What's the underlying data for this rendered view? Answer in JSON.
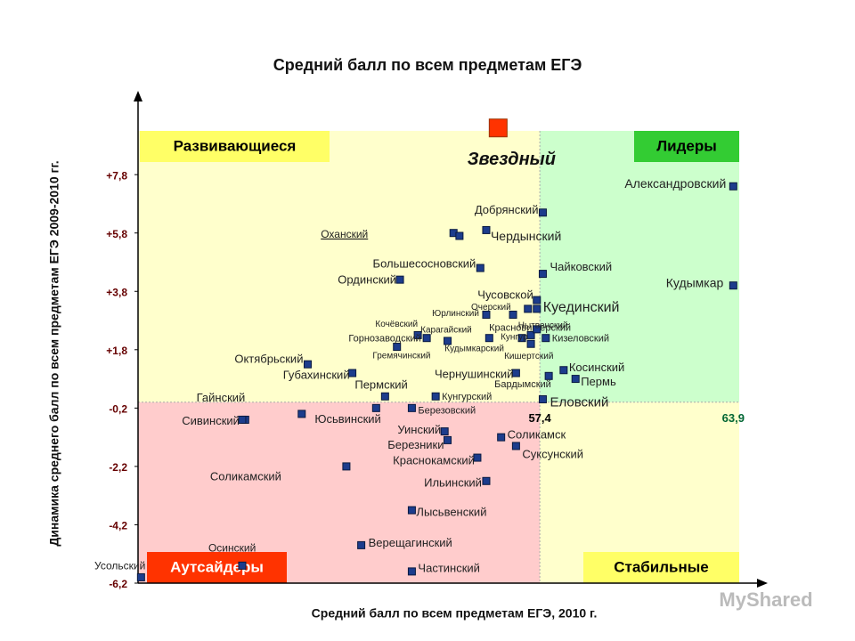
{
  "chart_data": {
    "type": "scatter",
    "title": "Средний балл по всем предметам ЕГЭ",
    "x_label": "Средний балл по всем предметам ЕГЭ, 2010 г.",
    "y_label": "Динамика среднего балл по всем предметам ЕГЭ 2009-2010 гг.",
    "xlim": [
      43.9,
      64.1
    ],
    "ylim": [
      -6.2,
      9.3
    ],
    "yticks": [
      {
        "value": 7.8,
        "label": "+7,8"
      },
      {
        "value": 5.8,
        "label": "+5,8"
      },
      {
        "value": 3.8,
        "label": "+3,8"
      },
      {
        "value": 1.8,
        "label": "+1,8"
      },
      {
        "value": -0.2,
        "label": "-0,2"
      },
      {
        "value": -2.2,
        "label": "-2,2"
      },
      {
        "value": -4.2,
        "label": "-4,2"
      },
      {
        "value": -6.2,
        "label": "-6,2"
      }
    ],
    "quadrant_split": {
      "x": 57.4,
      "y": 0
    },
    "quadrants": [
      {
        "label": "Развивающиеся",
        "color": "#ffffcc",
        "box_color": "#ffff66",
        "text_color": "#000000"
      },
      {
        "label": "Лидеры",
        "color": "#ccffcc",
        "box_color": "#33cc33",
        "text_color": "#000000"
      },
      {
        "label": "Аутсайдеры",
        "color": "#ffcccc",
        "box_color": "#ff3300",
        "text_color": "#ffffff"
      },
      {
        "label": "Стабильные",
        "color": "#ffffcc",
        "box_color": "#ffff66",
        "text_color": "#000000"
      }
    ],
    "annotations": [
      {
        "label": "57,4",
        "x": 57.4,
        "color": "#000000"
      },
      {
        "label": "63,9",
        "x": 63.9,
        "color": "#006633"
      }
    ],
    "color": "#1c3c8c",
    "highlight": {
      "name": "Звездный",
      "x": 56.0,
      "y": 9.4,
      "color": "#ff3300"
    },
    "points": [
      {
        "name": "Александровский",
        "x": 63.9,
        "y": 7.4
      },
      {
        "name": "Кудымкар",
        "x": 63.9,
        "y": 4.0
      },
      {
        "name": "Добрянский",
        "x": 57.5,
        "y": 6.5
      },
      {
        "name": "Чердынский",
        "x": 55.6,
        "y": 5.9
      },
      {
        "name": "Оханский",
        "x": 54.5,
        "y": 5.8
      },
      {
        "name": null,
        "x": 54.7,
        "y": 5.7
      },
      {
        "name": "Большесосновский",
        "x": 55.4,
        "y": 4.6
      },
      {
        "name": "Ординский",
        "x": 52.7,
        "y": 4.2
      },
      {
        "name": "Чайковский",
        "x": 57.5,
        "y": 4.4
      },
      {
        "name": "Чусовской",
        "x": 57.3,
        "y": 3.5
      },
      {
        "name": "Очерский",
        "x": 56.5,
        "y": 3.0
      },
      {
        "name": "Юрлинский",
        "x": 55.6,
        "y": 3.0
      },
      {
        "name": "Куединский",
        "x": 57.3,
        "y": 3.2
      },
      {
        "name": null,
        "x": 57.0,
        "y": 3.2
      },
      {
        "name": "Кочёвский",
        "x": 53.3,
        "y": 2.3
      },
      {
        "name": "Карагайский",
        "x": 53.6,
        "y": 2.2
      },
      {
        "name": "Горнозаводский",
        "x": 52.6,
        "y": 1.9
      },
      {
        "name": "Гремячинский",
        "x": 54.3,
        "y": 2.1
      },
      {
        "name": "Кудымкарский",
        "x": 55.7,
        "y": 2.2
      },
      {
        "name": "Красновишерский",
        "x": 57.1,
        "y": 2.3
      },
      {
        "name": "Нытвенский",
        "x": 57.3,
        "y": 2.5
      },
      {
        "name": "Кунгур",
        "x": 56.8,
        "y": 2.2
      },
      {
        "name": "Кизеловский",
        "x": 57.6,
        "y": 2.2
      },
      {
        "name": "Кишертский",
        "x": 57.1,
        "y": 2.0
      },
      {
        "name": "Октябрьский",
        "x": 49.6,
        "y": 1.3
      },
      {
        "name": "Губахинский",
        "x": 51.1,
        "y": 1.0
      },
      {
        "name": "Пермский",
        "x": 52.2,
        "y": 0.2
      },
      {
        "name": "Чернушинский",
        "x": 56.6,
        "y": 1.0
      },
      {
        "name": "Косинский",
        "x": 58.2,
        "y": 1.1
      },
      {
        "name": "Пермь",
        "x": 58.6,
        "y": 0.8
      },
      {
        "name": "Бардымский",
        "x": 57.7,
        "y": 0.9
      },
      {
        "name": "Кунгурский",
        "x": 53.9,
        "y": 0.2
      },
      {
        "name": "Еловский",
        "x": 57.5,
        "y": 0.1
      },
      {
        "name": "Березовский",
        "x": 53.1,
        "y": -0.2
      },
      {
        "name": "Гайнский",
        "x": 47.5,
        "y": -0.6
      },
      {
        "name": "Сивинский",
        "x": 47.4,
        "y": -0.6
      },
      {
        "name": "Юсьвинский",
        "x": 51.9,
        "y": -0.2
      },
      {
        "name": null,
        "x": 49.4,
        "y": -0.4
      },
      {
        "name": "Уинский",
        "x": 54.2,
        "y": -1.0
      },
      {
        "name": "Березники",
        "x": 54.3,
        "y": -1.3
      },
      {
        "name": "Соликамск",
        "x": 56.1,
        "y": -1.2
      },
      {
        "name": "Суксунский",
        "x": 56.6,
        "y": -1.5
      },
      {
        "name": "Краснокамский",
        "x": 55.3,
        "y": -1.9
      },
      {
        "name": "Соликамский",
        "x": 50.9,
        "y": -2.2
      },
      {
        "name": "Ильинский",
        "x": 55.6,
        "y": -2.7
      },
      {
        "name": "Лысьвенский",
        "x": 53.1,
        "y": -3.7
      },
      {
        "name": "Верещагинский",
        "x": 51.4,
        "y": -4.9
      },
      {
        "name": "Частинский",
        "x": 53.1,
        "y": -5.8
      },
      {
        "name": "Осинский",
        "x": 47.4,
        "y": -5.6
      },
      {
        "name": "Усольский",
        "x": 44.0,
        "y": -6.0
      }
    ],
    "watermark": "MyShared"
  }
}
